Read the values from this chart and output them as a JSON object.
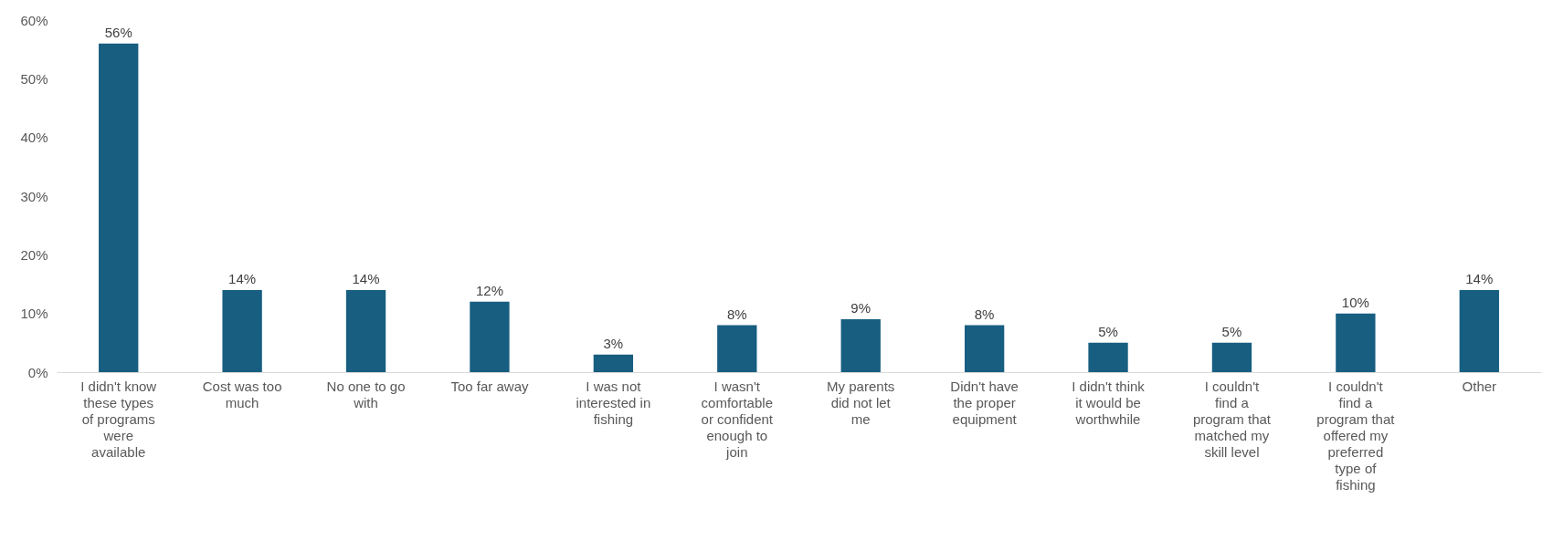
{
  "chart_data": {
    "type": "bar",
    "categories": [
      "I didn't know these types of programs were available",
      "Cost was too much",
      "No one to go with",
      "Too far away",
      "I was not interested in fishing",
      "I wasn't comfortable or confident enough to join",
      "My parents did not let me",
      "Didn't have the proper equipment",
      "I didn't think it would be worthwhile",
      "I couldn't find a program that matched my skill level",
      "I couldn't find a program that offered my preferred type of fishing",
      "Other"
    ],
    "values": [
      56,
      14,
      14,
      12,
      3,
      8,
      9,
      8,
      5,
      5,
      10,
      14
    ],
    "value_labels": [
      "56%",
      "14%",
      "14%",
      "12%",
      "3%",
      "8%",
      "9%",
      "8%",
      "5%",
      "5%",
      "10%",
      "14%"
    ],
    "color": "#175e80",
    "ylim": [
      0,
      60
    ],
    "yticks": [
      {
        "value": 0,
        "label": "0%"
      },
      {
        "value": 10,
        "label": "10%"
      },
      {
        "value": 20,
        "label": "20%"
      },
      {
        "value": 30,
        "label": "30%"
      },
      {
        "value": 40,
        "label": "40%"
      },
      {
        "value": 50,
        "label": "50%"
      },
      {
        "value": 60,
        "label": "60%"
      }
    ],
    "grid": false
  }
}
